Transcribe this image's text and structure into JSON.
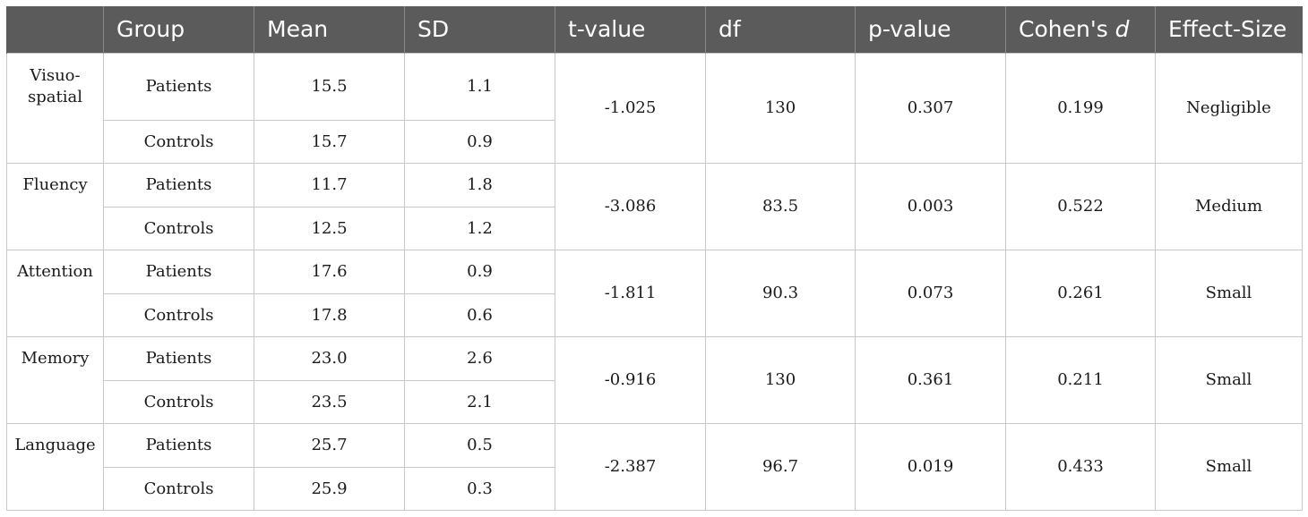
{
  "headers": {
    "domain": "",
    "group": "Group",
    "mean": "Mean",
    "sd": "SD",
    "t": "t-value",
    "df": "df",
    "p": "p-value",
    "cohen_prefix": "Cohen's ",
    "cohen_d": "d",
    "effect": "Effect-Size"
  },
  "rows": [
    {
      "domain": "Visuo-spatial",
      "patients": {
        "label": "Patients",
        "mean": "15.5",
        "sd": "1.1"
      },
      "controls": {
        "label": "Controls",
        "mean": "15.7",
        "sd": "0.9"
      },
      "t": "-1.025",
      "df": "130",
      "p": "0.307",
      "d": "0.199",
      "effect": "Negligible"
    },
    {
      "domain": "Fluency",
      "patients": {
        "label": "Patients",
        "mean": "11.7",
        "sd": "1.8"
      },
      "controls": {
        "label": "Controls",
        "mean": "12.5",
        "sd": "1.2"
      },
      "t": "-3.086",
      "df": "83.5",
      "p": "0.003",
      "d": "0.522",
      "effect": "Medium"
    },
    {
      "domain": "Attention",
      "patients": {
        "label": "Patients",
        "mean": "17.6",
        "sd": "0.9"
      },
      "controls": {
        "label": "Controls",
        "mean": "17.8",
        "sd": "0.6"
      },
      "t": "-1.811",
      "df": "90.3",
      "p": "0.073",
      "d": "0.261",
      "effect": "Small"
    },
    {
      "domain": "Memory",
      "patients": {
        "label": "Patients",
        "mean": "23.0",
        "sd": "2.6"
      },
      "controls": {
        "label": "Controls",
        "mean": "23.5",
        "sd": "2.1"
      },
      "t": "-0.916",
      "df": "130",
      "p": "0.361",
      "d": "0.211",
      "effect": "Small"
    },
    {
      "domain": "Language",
      "patients": {
        "label": "Patients",
        "mean": "25.7",
        "sd": "0.5"
      },
      "controls": {
        "label": "Controls",
        "mean": "25.9",
        "sd": "0.3"
      },
      "t": "-2.387",
      "df": "96.7",
      "p": "0.019",
      "d": "0.433",
      "effect": "Small"
    }
  ]
}
